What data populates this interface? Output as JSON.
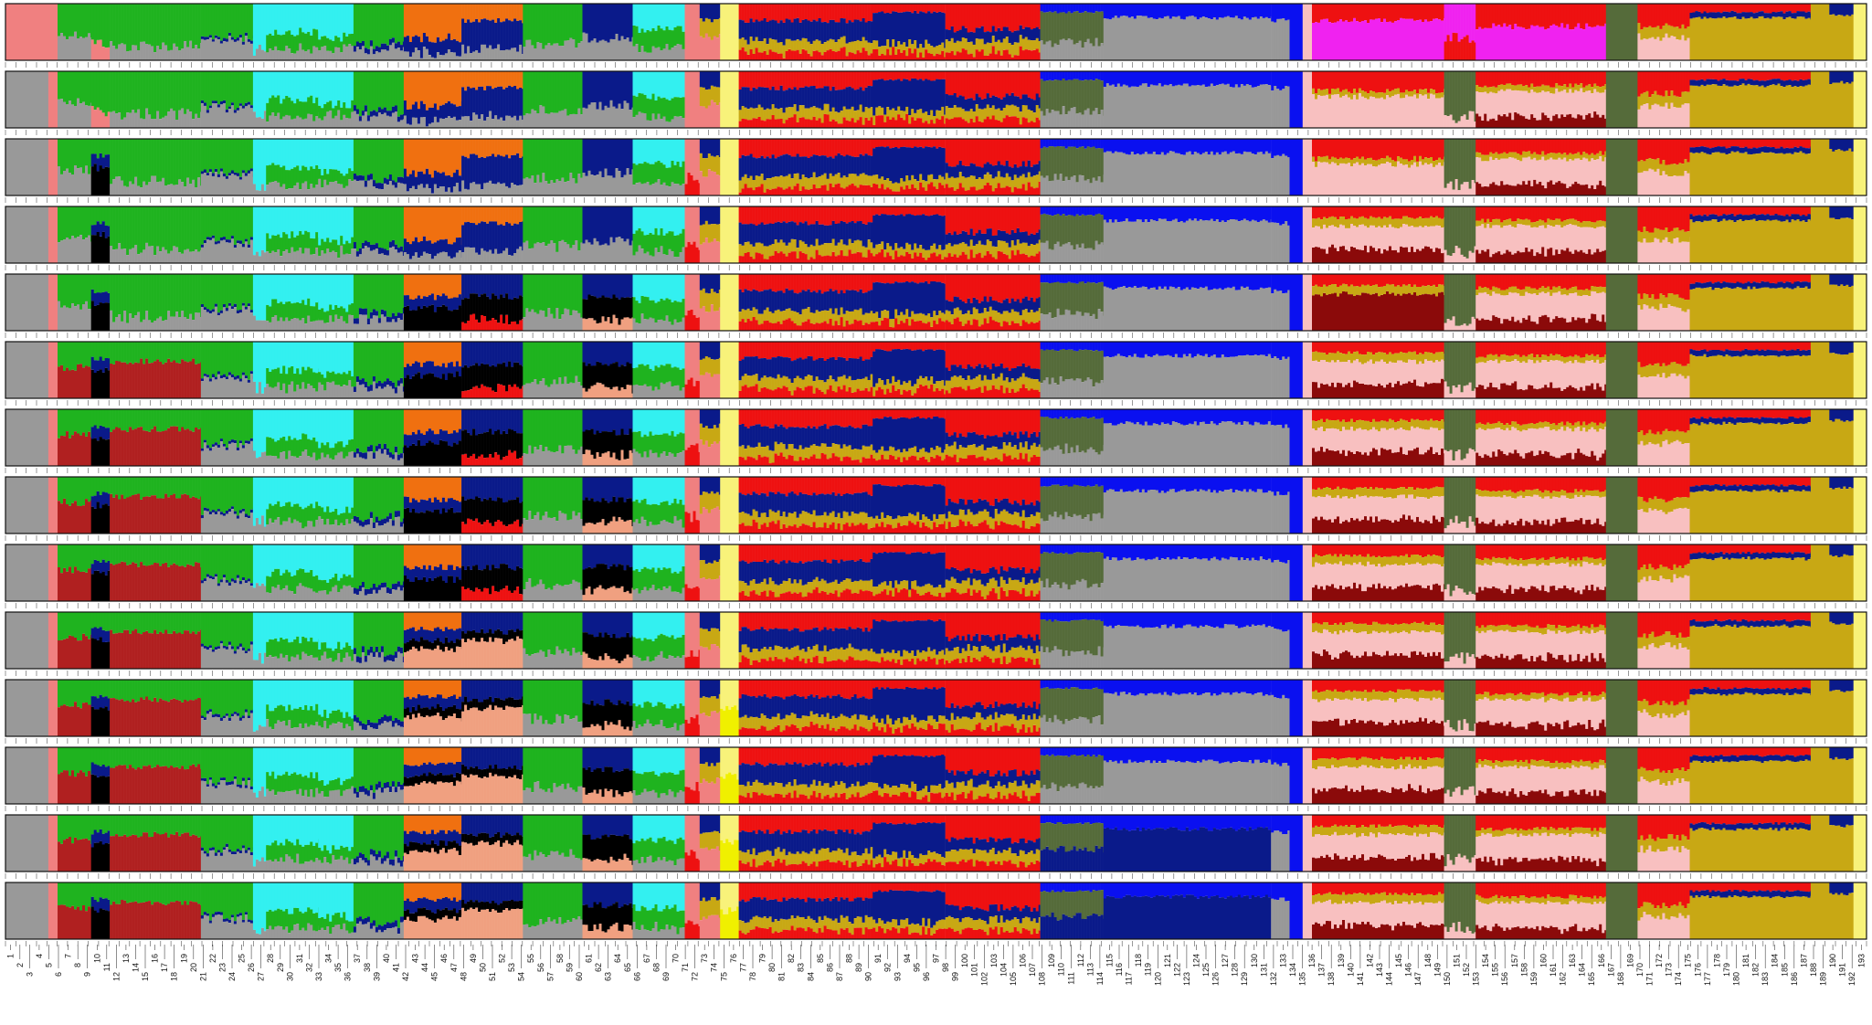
{
  "chart_data": {
    "type": "bar",
    "description_kind": "stacked-ancestry-structure-plot",
    "n_rows": 14,
    "n_populations": 193,
    "ylim": [
      0,
      1
    ],
    "population_labels": [
      "1",
      "2",
      "3",
      "4",
      "5",
      "6",
      "7",
      "8",
      "9",
      "10",
      "11",
      "12",
      "13",
      "14",
      "15",
      "16",
      "17",
      "18",
      "19",
      "20",
      "21",
      "22",
      "23",
      "24",
      "25",
      "26",
      "27",
      "28",
      "29",
      "30",
      "31",
      "32",
      "33",
      "34",
      "35",
      "36",
      "37",
      "38",
      "39",
      "40",
      "41",
      "42",
      "43",
      "44",
      "45",
      "46",
      "47",
      "48",
      "49",
      "50",
      "51",
      "52",
      "53",
      "54",
      "55",
      "56",
      "57",
      "58",
      "59",
      "60",
      "61",
      "62",
      "63",
      "64",
      "65",
      "66",
      "67",
      "68",
      "69",
      "70",
      "71",
      "72",
      "73",
      "74",
      "75",
      "76",
      "77",
      "78",
      "79",
      "80",
      "81",
      "82",
      "83",
      "84",
      "85",
      "86",
      "87",
      "88",
      "89",
      "90",
      "91",
      "92",
      "93",
      "94",
      "95",
      "96",
      "97",
      "98",
      "99",
      "100",
      "101",
      "102",
      "103",
      "104",
      "105",
      "106",
      "107",
      "108",
      "109",
      "110",
      "111",
      "112",
      "113",
      "114",
      "115",
      "116",
      "117",
      "118",
      "119",
      "120",
      "121",
      "122",
      "123",
      "124",
      "125",
      "126",
      "127",
      "128",
      "129",
      "130",
      "131",
      "132",
      "133",
      "134",
      "135",
      "136",
      "137",
      "138",
      "139",
      "140",
      "141",
      "142",
      "143",
      "144",
      "145",
      "146",
      "147",
      "148",
      "149",
      "150",
      "151",
      "152",
      "153",
      "154",
      "155",
      "156",
      "157",
      "158",
      "159",
      "160",
      "161",
      "162",
      "163",
      "164",
      "165",
      "166",
      "167",
      "168",
      "169",
      "170",
      "171",
      "172",
      "173",
      "174",
      "175",
      "176",
      "177",
      "178",
      "179",
      "180",
      "181",
      "182",
      "183",
      "184",
      "185",
      "186",
      "187",
      "188",
      "189",
      "190",
      "191",
      "192",
      "193"
    ],
    "cluster_colors": {
      "salmon": "#f08080",
      "grey": "#999999",
      "green": "#1fb31f",
      "cyan": "#33f0f0",
      "orange": "#f07010",
      "navy": "#0a1a8a",
      "black": "#000000",
      "red": "#ee1111",
      "olive": "#c8a814",
      "olive_dark": "#556b3a",
      "blue": "#0a10f0",
      "magenta": "#f022f0",
      "pink": "#f8c0c0",
      "darkred": "#8b0a0a",
      "brick": "#b02020",
      "peach": "#f0a080",
      "yellow": "#f8f27a",
      "brightyellow": "#f0f000"
    },
    "region_boundaries": [
      {
        "from": 1,
        "to": 8
      },
      {
        "from": 9,
        "to": 71
      },
      {
        "from": 72,
        "to": 104
      },
      {
        "from": 105,
        "to": 126
      },
      {
        "from": 127,
        "to": 193
      }
    ]
  }
}
